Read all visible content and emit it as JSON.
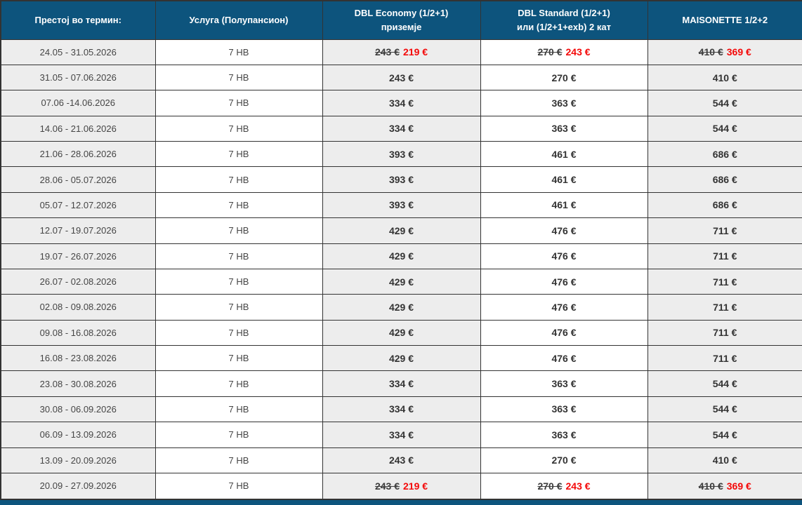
{
  "colors": {
    "header_bg": "#0d547d",
    "alt_cell_bg": "#ededed",
    "border": "#333333",
    "price_text": "#333333",
    "discount_red": "#f40808"
  },
  "table": {
    "header": [
      {
        "id": "period",
        "lines": [
          "Престој во термин:"
        ]
      },
      {
        "id": "service",
        "lines": [
          "Услуга (Полупансион)"
        ]
      },
      {
        "id": "dbl-economy",
        "lines": [
          "DBL Economy (1/2+1)",
          "приземје"
        ]
      },
      {
        "id": "dbl-standard",
        "lines": [
          "DBL Standard (1/2+1)",
          "или (1/2+1+exb) 2 кат"
        ]
      },
      {
        "id": "maisonette",
        "lines": [
          "MAISONETTE  1/2+2"
        ]
      }
    ],
    "rows": [
      {
        "period": "24.05 - 31.05.2026",
        "service": "7 HB",
        "prices": [
          {
            "old": "243 €",
            "new": "219 €"
          },
          {
            "old": "270 €",
            "new": "243 €"
          },
          {
            "old": "410 €",
            "new": "369 €"
          }
        ]
      },
      {
        "period": "31.05 - 07.06.2026",
        "service": "7 HB",
        "prices": [
          {
            "value": "243 €"
          },
          {
            "value": "270 €"
          },
          {
            "value": "410 €"
          }
        ]
      },
      {
        "period": "07.06 -14.06.2026",
        "service": "7 HB",
        "prices": [
          {
            "value": "334 €"
          },
          {
            "value": "363 €"
          },
          {
            "value": "544 €"
          }
        ]
      },
      {
        "period": "14.06 - 21.06.2026",
        "service": "7 HB",
        "prices": [
          {
            "value": "334 €"
          },
          {
            "value": "363 €"
          },
          {
            "value": "544 €"
          }
        ]
      },
      {
        "period": "21.06 - 28.06.2026",
        "service": "7 HB",
        "prices": [
          {
            "value": "393 €"
          },
          {
            "value": "461 €"
          },
          {
            "value": "686 €"
          }
        ]
      },
      {
        "period": "28.06 - 05.07.2026",
        "service": "7 HB",
        "prices": [
          {
            "value": "393 €"
          },
          {
            "value": "461 €"
          },
          {
            "value": "686 €"
          }
        ]
      },
      {
        "period": "05.07 - 12.07.2026",
        "service": "7 HB",
        "prices": [
          {
            "value": "393 €"
          },
          {
            "value": "461 €"
          },
          {
            "value": "686 €"
          }
        ]
      },
      {
        "period": "12.07 - 19.07.2026",
        "service": "7 HB",
        "prices": [
          {
            "value": "429 €"
          },
          {
            "value": "476 €"
          },
          {
            "value": "711 €"
          }
        ]
      },
      {
        "period": "19.07 - 26.07.2026",
        "service": "7 HB",
        "prices": [
          {
            "value": "429 €"
          },
          {
            "value": "476 €"
          },
          {
            "value": "711 €"
          }
        ]
      },
      {
        "period": "26.07 - 02.08.2026",
        "service": "7 HB",
        "prices": [
          {
            "value": "429 €"
          },
          {
            "value": "476 €"
          },
          {
            "value": "711 €"
          }
        ]
      },
      {
        "period": "02.08 - 09.08.2026",
        "service": "7 HB",
        "prices": [
          {
            "value": "429 €"
          },
          {
            "value": "476 €"
          },
          {
            "value": "711 €"
          }
        ]
      },
      {
        "period": "09.08 - 16.08.2026",
        "service": "7 HB",
        "prices": [
          {
            "value": "429 €"
          },
          {
            "value": "476 €"
          },
          {
            "value": "711 €"
          }
        ]
      },
      {
        "period": "16.08 - 23.08.2026",
        "service": "7 HB",
        "prices": [
          {
            "value": "429 €"
          },
          {
            "value": "476 €"
          },
          {
            "value": "711 €"
          }
        ]
      },
      {
        "period": "23.08 - 30.08.2026",
        "service": "7 HB",
        "prices": [
          {
            "value": "334 €"
          },
          {
            "value": "363 €"
          },
          {
            "value": "544 €"
          }
        ]
      },
      {
        "period": "30.08 - 06.09.2026",
        "service": "7 HB",
        "prices": [
          {
            "value": "334 €"
          },
          {
            "value": "363 €"
          },
          {
            "value": "544 €"
          }
        ]
      },
      {
        "period": "06.09 - 13.09.2026",
        "service": "7 HB",
        "prices": [
          {
            "value": "334 €"
          },
          {
            "value": "363 €"
          },
          {
            "value": "544 €"
          }
        ]
      },
      {
        "period": "13.09 - 20.09.2026",
        "service": "7 HB",
        "prices": [
          {
            "value": "243 €"
          },
          {
            "value": "270 €"
          },
          {
            "value": "410 €"
          }
        ]
      },
      {
        "period": "20.09 - 27.09.2026",
        "service": "7 HB",
        "prices": [
          {
            "old": "243 €",
            "new": "219 €"
          },
          {
            "old": "270 €",
            "new": "243 €"
          },
          {
            "old": "410 €",
            "new": "369 €"
          }
        ]
      }
    ]
  }
}
